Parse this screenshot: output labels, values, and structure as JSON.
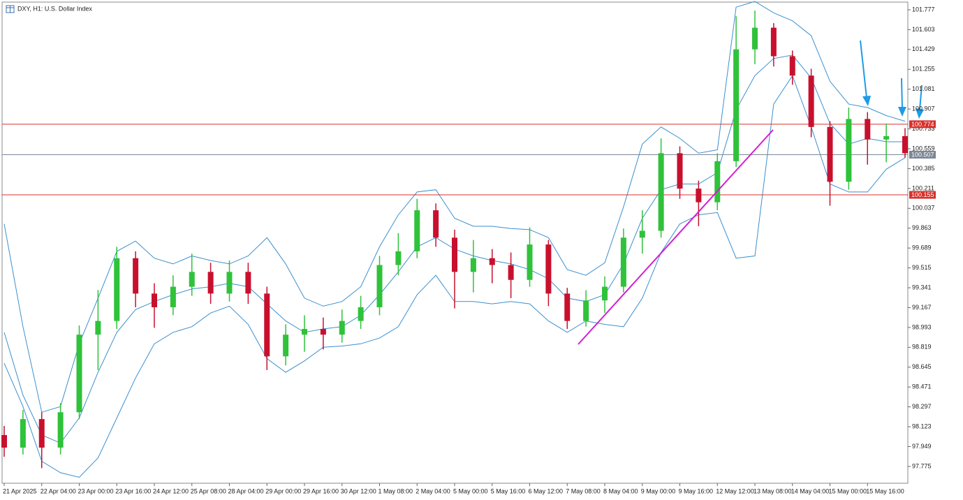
{
  "chart_data": {
    "type": "candlestick",
    "title": "DXY, H1:  U.S. Dollar Index",
    "categories": [
      "21 Apr 2025",
      null,
      "22 Apr 04:00",
      null,
      "23 Apr 00:00",
      null,
      "23 Apr 16:00",
      null,
      "24 Apr 12:00",
      null,
      "25 Apr 08:00",
      null,
      "28 Apr 04:00",
      null,
      "29 Apr 00:00",
      null,
      "29 Apr 16:00",
      null,
      "30 Apr 12:00",
      null,
      "1 May 08:00",
      null,
      "2 May 04:00",
      null,
      "5 May 00:00",
      null,
      "5 May 16:00",
      null,
      "6 May 12:00",
      null,
      "7 May 08:00",
      null,
      "8 May 04:00",
      null,
      "9 May 00:00",
      null,
      "9 May 16:00",
      null,
      "12 May 12:00",
      null,
      "13 May 08:00",
      null,
      "14 May 04:00",
      null,
      "15 May 00:00",
      null,
      "15 May 16:00",
      null,
      null
    ],
    "open": [
      98.05,
      97.94,
      98.19,
      97.94,
      98.25,
      98.93,
      99.05,
      99.6,
      99.29,
      99.17,
      99.35,
      99.48,
      99.29,
      99.48,
      99.29,
      98.74,
      98.93,
      98.98,
      98.93,
      99.05,
      99.17,
      99.54,
      99.66,
      100.02,
      99.78,
      99.48,
      99.6,
      99.54,
      99.41,
      99.72,
      99.29,
      99.05,
      99.23,
      99.35,
      99.78,
      99.84,
      100.52,
      100.21,
      100.09,
      100.45,
      101.43,
      101.62,
      101.37,
      101.2,
      100.75,
      100.27,
      100.82,
      100.64,
      100.67
    ],
    "high": [
      98.13,
      98.27,
      98.25,
      98.33,
      99.01,
      99.32,
      99.7,
      99.66,
      99.38,
      99.45,
      99.64,
      99.56,
      99.58,
      99.56,
      99.35,
      99.02,
      99.1,
      99.08,
      99.15,
      99.27,
      99.62,
      99.82,
      100.12,
      100.08,
      99.85,
      99.76,
      99.68,
      99.65,
      99.87,
      99.76,
      99.34,
      99.32,
      99.44,
      99.86,
      100.02,
      100.65,
      100.58,
      100.28,
      100.52,
      101.72,
      101.77,
      101.66,
      101.42,
      101.26,
      100.8,
      100.92,
      100.88,
      100.78,
      100.74
    ],
    "low": [
      97.86,
      97.88,
      97.76,
      97.88,
      98.19,
      98.62,
      98.98,
      99.17,
      98.99,
      99.1,
      99.27,
      99.2,
      99.22,
      99.2,
      98.62,
      98.66,
      98.78,
      98.8,
      98.86,
      98.98,
      99.1,
      99.45,
      99.6,
      99.7,
      99.16,
      99.3,
      99.38,
      99.25,
      99.35,
      99.18,
      98.98,
      99.0,
      99.12,
      99.3,
      99.64,
      99.78,
      100.12,
      99.88,
      100.02,
      100.4,
      101.3,
      101.28,
      101.12,
      100.66,
      100.06,
      100.2,
      100.42,
      100.44,
      100.48
    ],
    "close": [
      97.94,
      98.19,
      97.94,
      98.25,
      98.93,
      99.05,
      99.6,
      99.29,
      99.17,
      99.35,
      99.48,
      99.29,
      99.48,
      99.29,
      98.74,
      98.93,
      98.98,
      98.93,
      99.05,
      99.17,
      99.54,
      99.66,
      100.02,
      99.78,
      99.48,
      99.6,
      99.54,
      99.41,
      99.72,
      99.29,
      99.05,
      99.23,
      99.35,
      99.78,
      99.84,
      100.52,
      100.21,
      100.09,
      100.45,
      101.43,
      101.62,
      101.37,
      101.2,
      100.75,
      100.27,
      100.82,
      100.64,
      100.67,
      100.52
    ],
    "up_color": "#2fc23a",
    "down_color": "#c8102e",
    "bands": {
      "color": "#3b8fce",
      "upper": [
        99.9,
        99.0,
        98.25,
        98.3,
        98.85,
        99.25,
        99.66,
        99.75,
        99.6,
        99.55,
        99.62,
        99.58,
        99.55,
        99.62,
        99.78,
        99.55,
        99.25,
        99.18,
        99.22,
        99.35,
        99.7,
        99.98,
        100.18,
        100.2,
        99.95,
        99.88,
        99.88,
        99.86,
        99.85,
        99.78,
        99.5,
        99.45,
        99.56,
        100.05,
        100.6,
        100.75,
        100.65,
        100.52,
        100.55,
        101.8,
        101.85,
        101.75,
        101.68,
        101.55,
        101.15,
        100.95,
        100.92,
        100.85,
        100.8
      ],
      "middle": [
        98.95,
        98.4,
        98.05,
        97.98,
        98.2,
        98.6,
        98.95,
        99.15,
        99.22,
        99.28,
        99.33,
        99.35,
        99.38,
        99.35,
        99.2,
        99.05,
        98.95,
        98.98,
        99.0,
        99.1,
        99.28,
        99.48,
        99.7,
        99.78,
        99.68,
        99.62,
        99.58,
        99.55,
        99.5,
        99.42,
        99.25,
        99.22,
        99.28,
        99.55,
        99.95,
        100.2,
        100.25,
        100.25,
        100.35,
        100.9,
        101.2,
        101.35,
        101.38,
        101.18,
        100.78,
        100.6,
        100.65,
        100.62,
        100.62
      ],
      "lower": [
        98.68,
        98.3,
        97.82,
        97.72,
        97.68,
        97.85,
        98.2,
        98.55,
        98.85,
        98.95,
        99.0,
        99.12,
        99.18,
        99.02,
        98.72,
        98.6,
        98.7,
        98.82,
        98.83,
        98.85,
        98.9,
        99.0,
        99.28,
        99.45,
        99.22,
        99.22,
        99.2,
        99.22,
        99.2,
        99.05,
        98.95,
        99.05,
        99.02,
        99.0,
        99.25,
        99.65,
        99.9,
        99.98,
        100.0,
        99.6,
        99.62,
        100.95,
        101.2,
        100.75,
        100.25,
        100.18,
        100.18,
        100.38,
        100.48
      ]
    },
    "levels": [
      {
        "value": 100.774,
        "color": "#d9302b"
      },
      {
        "value": 100.507,
        "color": "#7b8794"
      },
      {
        "value": 100.155,
        "color": "#d9302b"
      }
    ],
    "ylim": [
      97.64,
      101.832
    ],
    "yticks": [
      101.777,
      101.603,
      101.429,
      101.255,
      101.081,
      100.907,
      100.733,
      100.559,
      100.385,
      100.211,
      100.037,
      99.863,
      99.689,
      99.515,
      99.341,
      99.167,
      98.993,
      98.819,
      98.645,
      98.471,
      98.297,
      98.123,
      97.949,
      97.775
    ],
    "grid": false
  }
}
